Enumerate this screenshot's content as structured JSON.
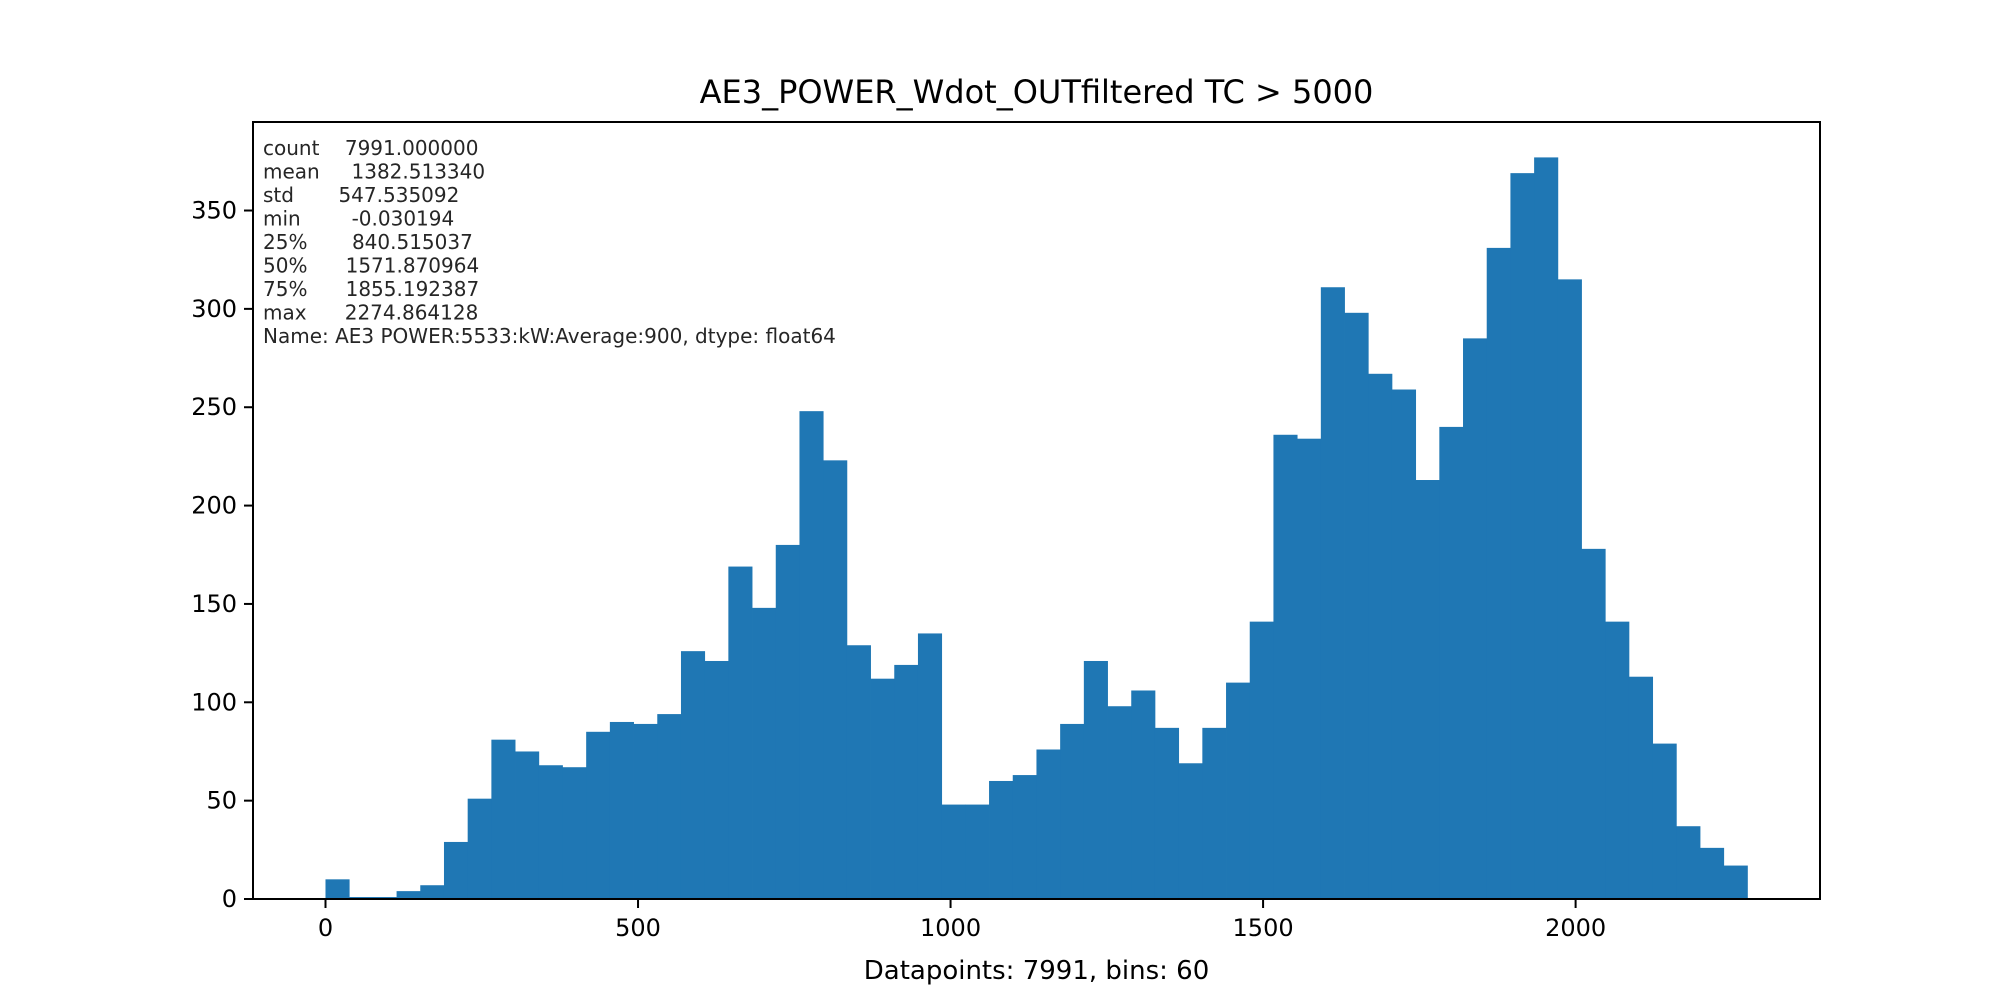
{
  "chart_data": {
    "type": "bar",
    "title": "AE3_POWER_Wdot_OUTfiltered TC > 5000",
    "xlabel": "Datapoints: 7991, bins: 60",
    "ylabel": "",
    "xlim": [
      -116,
      2391
    ],
    "ylim": [
      0,
      395
    ],
    "xticks": [
      0,
      500,
      1000,
      1500,
      2000
    ],
    "yticks": [
      0,
      50,
      100,
      150,
      200,
      250,
      300,
      350
    ],
    "bin_start": -0.030194,
    "bin_width": 37.9149,
    "values": [
      10,
      1,
      1,
      4,
      7,
      29,
      51,
      81,
      75,
      68,
      67,
      85,
      90,
      89,
      94,
      126,
      121,
      169,
      148,
      180,
      248,
      223,
      129,
      112,
      119,
      135,
      48,
      48,
      60,
      63,
      76,
      89,
      121,
      98,
      106,
      87,
      69,
      87,
      110,
      141,
      236,
      234,
      311,
      298,
      267,
      259,
      213,
      240,
      285,
      331,
      369,
      377,
      315,
      178,
      141,
      113,
      79,
      37,
      26,
      17
    ],
    "bar_color": "#1f77b4",
    "grid": false,
    "annotation_lines": [
      "count    7991.000000",
      "mean     1382.513340",
      "std       547.535092",
      "min        -0.030194",
      "25%       840.515037",
      "50%      1571.870964",
      "75%      1855.192387",
      "max      2274.864128",
      "Name: AE3 POWER:5533:kW:Average:900, dtype: float64"
    ]
  }
}
